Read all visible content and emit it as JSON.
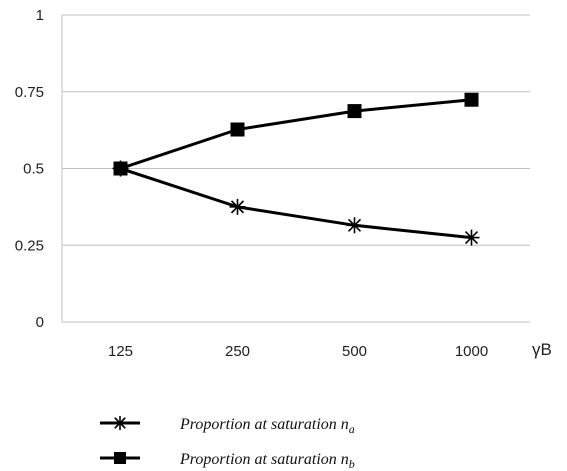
{
  "chart_data": {
    "type": "line",
    "x_label": "γB",
    "categories": [
      "125",
      "250",
      "500",
      "1000"
    ],
    "y_ticks": [
      "0",
      "0.25",
      "0.5",
      "0.75",
      "1"
    ],
    "ylim": [
      0,
      1
    ],
    "grid": "horizontal",
    "legend_position": "bottom",
    "series": [
      {
        "name": "Proportion at saturation n_a",
        "marker": "asterisk",
        "values": [
          0.5,
          0.375,
          0.315,
          0.275
        ]
      },
      {
        "name": "Proportion at saturation n_b",
        "marker": "square",
        "values": [
          0.5,
          0.627,
          0.687,
          0.724
        ]
      }
    ],
    "colors": {
      "line": "#000000",
      "grid": "#c0c0c0"
    }
  }
}
